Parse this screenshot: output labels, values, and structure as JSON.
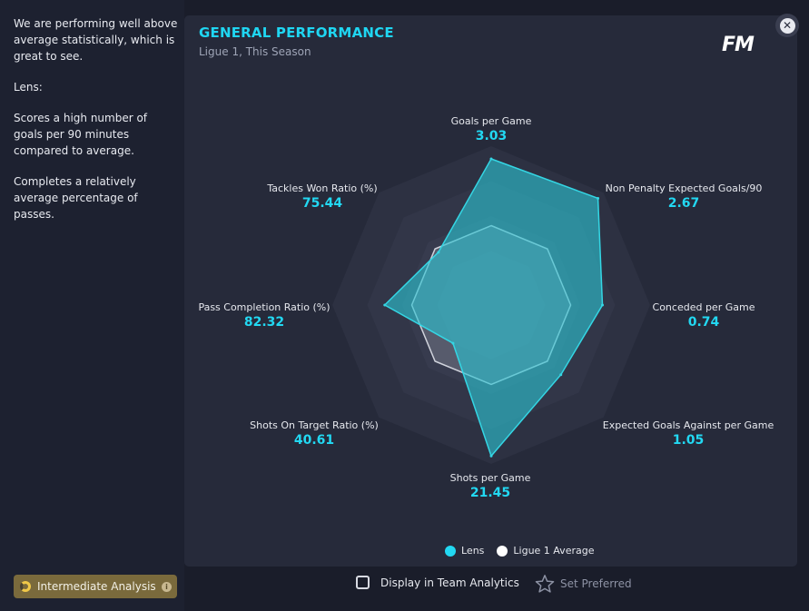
{
  "sidebar": {
    "paragraphs": [
      "We are performing well above average statistically, which is great to see.",
      "Lens:",
      "Scores a high number of goals per 90 minutes compared to average.",
      "Completes a relatively average percentage of passes."
    ],
    "analysis_button": "Intermediate Analysis",
    "analysis_info_icon": "i"
  },
  "panel": {
    "title": "GENERAL PERFORMANCE",
    "subtitle": "Ligue 1, This Season",
    "logo": "FM",
    "close_icon": "✕"
  },
  "stats": [
    {
      "label": "Goals per Game",
      "value": "3.03"
    },
    {
      "label": "Non Penalty Expected Goals/90",
      "value": "2.67"
    },
    {
      "label": "Conceded per Game",
      "value": "0.74"
    },
    {
      "label": "Expected Goals Against per Game",
      "value": "1.05"
    },
    {
      "label": "Shots per Game",
      "value": "21.45"
    },
    {
      "label": "Shots On Target Ratio (%)",
      "value": "40.61"
    },
    {
      "label": "Pass Completion Ratio (%)",
      "value": "82.32"
    },
    {
      "label": "Tackles Won Ratio (%)",
      "value": "75.44"
    }
  ],
  "legend": {
    "lens": "Lens",
    "average": "Ligue 1 Average"
  },
  "colors": {
    "accent": "#1fd6f2",
    "lens": "#2bc3d2",
    "average": "#ffffff"
  },
  "footer": {
    "checkbox_label": "Display in Team Analytics",
    "preferred_label": "Set Preferred"
  },
  "chart_data": {
    "type": "radar",
    "axes": [
      "Goals per Game",
      "Non Penalty Expected Goals/90",
      "Conceded per Game",
      "Expected Goals Against per Game",
      "Shots per Game",
      "Shots On Target Ratio (%)",
      "Pass Completion Ratio (%)",
      "Tackles Won Ratio (%)"
    ],
    "series": [
      {
        "name": "Lens",
        "values": [
          0.92,
          0.95,
          0.7,
          0.62,
          0.95,
          0.34,
          0.67,
          0.47
        ]
      },
      {
        "name": "Ligue 1 Average",
        "values": [
          0.5,
          0.5,
          0.5,
          0.5,
          0.5,
          0.5,
          0.5,
          0.5
        ]
      }
    ],
    "scale": [
      0,
      1
    ]
  }
}
